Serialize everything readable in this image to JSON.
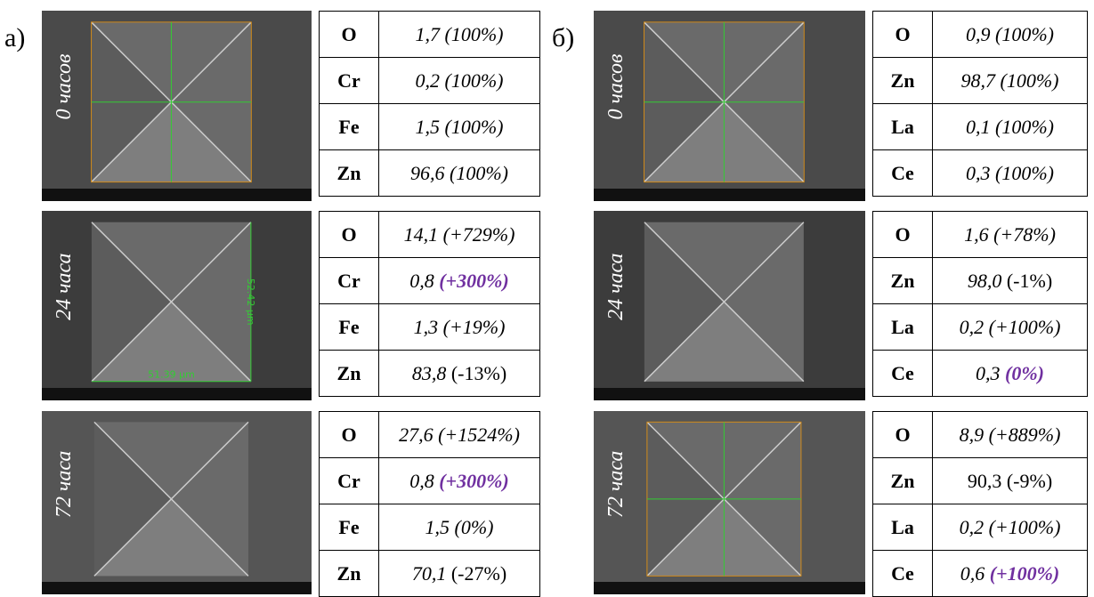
{
  "panels": [
    {
      "label": "а)",
      "rows": [
        {
          "time": "0 часов",
          "table": [
            {
              "element": "O",
              "value": "1,7",
              "change": "(100%)"
            },
            {
              "element": "Cr",
              "value": "0,2",
              "change": "(100%)"
            },
            {
              "element": "Fe",
              "value": "1,5",
              "change": "(100%)"
            },
            {
              "element": "Zn",
              "value": "96,6",
              "change": "(100%)"
            }
          ]
        },
        {
          "time": "24 часа",
          "measures": [
            "51.39 µm",
            "52.42 µm"
          ],
          "table": [
            {
              "element": "O",
              "value": "14,1",
              "change": "(+729%)"
            },
            {
              "element": "Cr",
              "value": "0,8",
              "change": "(+300%)"
            },
            {
              "element": "Fe",
              "value": "1,3",
              "change": "(+19%)"
            },
            {
              "element": "Zn",
              "value": "83,8",
              "change": "(-13%)"
            }
          ]
        },
        {
          "time": "72 часа",
          "table": [
            {
              "element": "O",
              "value": "27,6",
              "change": "(+1524%)"
            },
            {
              "element": "Cr",
              "value": "0,8",
              "change": "(+300%)"
            },
            {
              "element": "Fe",
              "value": "1,5",
              "change": "(0%)"
            },
            {
              "element": "Zn",
              "value": "70,1",
              "change": "(-27%)"
            }
          ]
        }
      ]
    },
    {
      "label": "б)",
      "rows": [
        {
          "time": "0 часов",
          "table": [
            {
              "element": "O",
              "value": "0,9",
              "change": "(100%)"
            },
            {
              "element": "Zn",
              "value": "98,7",
              "change": "(100%)"
            },
            {
              "element": "La",
              "value": "0,1",
              "change": "(100%)"
            },
            {
              "element": "Ce",
              "value": "0,3",
              "change": "(100%)"
            }
          ]
        },
        {
          "time": "24 часа",
          "table": [
            {
              "element": "O",
              "value": "1,6",
              "change": "(+78%)"
            },
            {
              "element": "Zn",
              "value": "98,0",
              "change": "(-1%)"
            },
            {
              "element": "La",
              "value": "0,2",
              "change": "(+100%)"
            },
            {
              "element": "Ce",
              "value": "0,3",
              "change": "(0%)"
            }
          ]
        },
        {
          "time": "72 часа",
          "table": [
            {
              "element": "O",
              "value": "8,9",
              "change": "(+889%)"
            },
            {
              "element": "Zn",
              "value": "90,3",
              "change": "(-9%)"
            },
            {
              "element": "La",
              "value": "0,2",
              "change": "(+100%)"
            },
            {
              "element": "Ce",
              "value": "0,6",
              "change": "(+100%)"
            }
          ]
        }
      ]
    }
  ]
}
